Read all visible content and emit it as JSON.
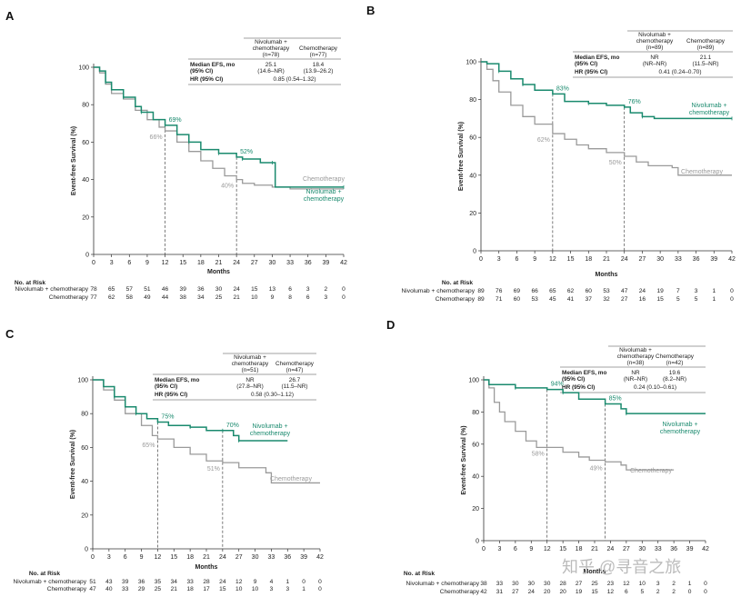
{
  "colors": {
    "nivo": "#1a8a6e",
    "chemo": "#9a9a9a"
  },
  "common": {
    "ylabel": "Event-free Survival (%)",
    "xlabel": "Months",
    "risk_title": "No. at Risk",
    "nivo_label": "Nivolumab + chemotherapy",
    "chemo_label": "Chemotherapy",
    "nivo_curve_label": [
      "Nivolumab +",
      "chemotherapy"
    ],
    "chemo_curve_label": "Chemotherapy",
    "row_median": [
      "Median EFS, mo",
      "(95% CI)"
    ],
    "row_hr": "HR (95% CI)",
    "col_nivo_head": [
      "Nivolumab +",
      "chemotherapy"
    ],
    "col_chemo_head": "Chemotherapy"
  },
  "watermark": "知乎 @寻音之旅",
  "chart_data": [
    {
      "panel": "A",
      "type": "line",
      "xlim": [
        0,
        42
      ],
      "ylim": [
        0,
        100
      ],
      "xticks": [
        0,
        3,
        6,
        9,
        12,
        15,
        18,
        21,
        24,
        27,
        30,
        33,
        36,
        39,
        42
      ],
      "yticks": [
        0,
        20,
        40,
        60,
        80,
        100
      ],
      "n_nivo": "(n=78)",
      "n_chemo": "(n=77)",
      "median_nivo": [
        "25.1",
        "(14.6–NR)"
      ],
      "median_chemo": [
        "18.4",
        "(13.9–26.2)"
      ],
      "hr": "0.85 (0.54–1.32)",
      "nivo": [
        [
          0,
          100
        ],
        [
          1,
          98
        ],
        [
          2,
          92
        ],
        [
          3,
          88
        ],
        [
          5,
          84
        ],
        [
          7,
          79
        ],
        [
          8,
          76
        ],
        [
          10,
          72
        ],
        [
          12,
          69
        ],
        [
          14,
          64
        ],
        [
          16,
          60
        ],
        [
          18,
          56
        ],
        [
          21,
          54
        ],
        [
          24,
          52
        ],
        [
          25,
          51
        ],
        [
          28,
          49
        ],
        [
          30,
          49
        ],
        [
          30.5,
          36
        ],
        [
          42,
          36
        ]
      ],
      "chemo": [
        [
          0,
          100
        ],
        [
          1,
          97
        ],
        [
          2,
          91
        ],
        [
          3,
          86
        ],
        [
          5,
          83
        ],
        [
          7,
          77
        ],
        [
          9,
          72
        ],
        [
          11,
          68
        ],
        [
          12,
          66
        ],
        [
          14,
          60
        ],
        [
          16,
          55
        ],
        [
          18,
          50
        ],
        [
          20,
          46
        ],
        [
          22,
          42
        ],
        [
          24,
          40
        ],
        [
          25,
          38
        ],
        [
          27,
          37
        ],
        [
          30,
          36
        ],
        [
          33,
          35
        ],
        [
          42,
          35
        ]
      ],
      "ann_nivo": [
        {
          "x": 12,
          "y": 69,
          "t": "69%"
        },
        {
          "x": 24,
          "y": 52,
          "t": "52%"
        }
      ],
      "ann_chemo": [
        {
          "x": 12,
          "y": 66,
          "t": "66%"
        },
        {
          "x": 24,
          "y": 40,
          "t": "40%"
        }
      ],
      "risk_x": [
        0,
        3,
        6,
        9,
        12,
        15,
        18,
        21,
        24,
        27,
        30,
        33,
        36,
        39,
        42
      ],
      "risk_nivo": [
        "78",
        "65",
        "57",
        "51",
        "46",
        "39",
        "36",
        "30",
        "24",
        "15",
        "13",
        "6",
        "3",
        "2",
        "0"
      ],
      "risk_chemo": [
        "77",
        "62",
        "58",
        "49",
        "44",
        "38",
        "34",
        "25",
        "21",
        "10",
        "9",
        "8",
        "6",
        "3",
        "0"
      ]
    },
    {
      "panel": "B",
      "type": "line",
      "xlim": [
        0,
        42
      ],
      "ylim": [
        0,
        100
      ],
      "xticks": [
        0,
        3,
        6,
        9,
        12,
        15,
        18,
        21,
        24,
        27,
        30,
        33,
        36,
        39,
        42
      ],
      "yticks": [
        0,
        20,
        40,
        60,
        80,
        100
      ],
      "n_nivo": "(n=89)",
      "n_chemo": "(n=89)",
      "median_nivo": [
        "NR",
        "(NR–NR)"
      ],
      "median_chemo": [
        "21.1",
        "(11.5–NR)"
      ],
      "hr": "0.41 (0.24–0.70)",
      "nivo": [
        [
          0,
          100
        ],
        [
          1,
          99
        ],
        [
          3,
          95
        ],
        [
          5,
          91
        ],
        [
          7,
          88
        ],
        [
          9,
          85
        ],
        [
          12,
          83
        ],
        [
          14,
          79
        ],
        [
          18,
          78
        ],
        [
          21,
          77
        ],
        [
          24,
          76
        ],
        [
          25,
          73
        ],
        [
          27,
          71
        ],
        [
          29,
          70
        ],
        [
          42,
          70
        ]
      ],
      "chemo": [
        [
          0,
          100
        ],
        [
          1,
          96
        ],
        [
          2,
          90
        ],
        [
          3,
          84
        ],
        [
          5,
          77
        ],
        [
          7,
          71
        ],
        [
          9,
          67
        ],
        [
          12,
          62
        ],
        [
          14,
          59
        ],
        [
          16,
          56
        ],
        [
          18,
          54
        ],
        [
          21,
          52
        ],
        [
          24,
          50
        ],
        [
          26,
          47
        ],
        [
          28,
          45
        ],
        [
          32,
          44
        ],
        [
          33,
          40
        ],
        [
          42,
          40
        ]
      ],
      "ann_nivo": [
        {
          "x": 12,
          "y": 83,
          "t": "83%"
        },
        {
          "x": 24,
          "y": 76,
          "t": "76%"
        }
      ],
      "ann_chemo": [
        {
          "x": 12,
          "y": 62,
          "t": "62%"
        },
        {
          "x": 24,
          "y": 50,
          "t": "50%"
        }
      ],
      "risk_x": [
        0,
        3,
        6,
        9,
        12,
        15,
        18,
        21,
        24,
        27,
        30,
        33,
        36,
        39,
        42
      ],
      "risk_nivo": [
        "89",
        "76",
        "69",
        "66",
        "65",
        "62",
        "60",
        "53",
        "47",
        "24",
        "19",
        "7",
        "3",
        "1",
        "0"
      ],
      "risk_chemo": [
        "89",
        "71",
        "60",
        "53",
        "45",
        "41",
        "37",
        "32",
        "27",
        "16",
        "15",
        "5",
        "5",
        "1",
        "0"
      ]
    },
    {
      "panel": "C",
      "type": "line",
      "xlim": [
        0,
        42
      ],
      "ylim": [
        0,
        100
      ],
      "xticks": [
        0,
        3,
        6,
        9,
        12,
        15,
        18,
        21,
        24,
        27,
        30,
        33,
        36,
        39,
        42
      ],
      "yticks": [
        0,
        20,
        40,
        60,
        80,
        100
      ],
      "n_nivo": "(n=51)",
      "n_chemo": "(n=47)",
      "median_nivo": [
        "NR",
        "(27.8–NR)"
      ],
      "median_chemo": [
        "26.7",
        "(11.5–NR)"
      ],
      "hr": "0.58 (0.30–1.12)",
      "nivo": [
        [
          0,
          100
        ],
        [
          2,
          96
        ],
        [
          4,
          90
        ],
        [
          6,
          84
        ],
        [
          8,
          80
        ],
        [
          10,
          77
        ],
        [
          12,
          75
        ],
        [
          14,
          73
        ],
        [
          18,
          72
        ],
        [
          21,
          70
        ],
        [
          24,
          70
        ],
        [
          26,
          67
        ],
        [
          27,
          64
        ],
        [
          36,
          64
        ]
      ],
      "chemo": [
        [
          0,
          100
        ],
        [
          2,
          94
        ],
        [
          4,
          88
        ],
        [
          6,
          80
        ],
        [
          9,
          73
        ],
        [
          11,
          67
        ],
        [
          12,
          65
        ],
        [
          15,
          60
        ],
        [
          18,
          56
        ],
        [
          21,
          52
        ],
        [
          24,
          51
        ],
        [
          27,
          48
        ],
        [
          32,
          45
        ],
        [
          33,
          39
        ],
        [
          42,
          39
        ]
      ],
      "ann_nivo": [
        {
          "x": 12,
          "y": 75,
          "t": "75%"
        },
        {
          "x": 24,
          "y": 70,
          "t": "70%"
        }
      ],
      "ann_chemo": [
        {
          "x": 12,
          "y": 65,
          "t": "65%"
        },
        {
          "x": 24,
          "y": 51,
          "t": "51%"
        }
      ],
      "risk_x": [
        0,
        3,
        6,
        9,
        12,
        15,
        18,
        21,
        24,
        27,
        30,
        33,
        36,
        39,
        42
      ],
      "risk_nivo": [
        "51",
        "43",
        "39",
        "36",
        "35",
        "34",
        "33",
        "28",
        "24",
        "12",
        "9",
        "4",
        "1",
        "0",
        "0"
      ],
      "risk_chemo": [
        "47",
        "40",
        "33",
        "29",
        "25",
        "21",
        "18",
        "17",
        "15",
        "10",
        "10",
        "3",
        "3",
        "1",
        "0"
      ]
    },
    {
      "panel": "D",
      "type": "line",
      "xlim": [
        0,
        42
      ],
      "ylim": [
        0,
        100
      ],
      "xticks": [
        0,
        3,
        6,
        9,
        12,
        15,
        18,
        21,
        24,
        27,
        30,
        33,
        36,
        39,
        42
      ],
      "yticks": [
        0,
        20,
        40,
        60,
        80,
        100
      ],
      "n_nivo": "(n=38)",
      "n_chemo": "(n=42)",
      "median_nivo": [
        "NR",
        "(NR–NR)"
      ],
      "median_chemo": [
        "19.6",
        "(8.2–NR)"
      ],
      "hr": "0.24 (0.10–0.61)",
      "nivo": [
        [
          0,
          100
        ],
        [
          1,
          97
        ],
        [
          6,
          95
        ],
        [
          12,
          94
        ],
        [
          15,
          92
        ],
        [
          18,
          88
        ],
        [
          23,
          85
        ],
        [
          26,
          82
        ],
        [
          27,
          79
        ],
        [
          42,
          79
        ]
      ],
      "chemo": [
        [
          0,
          100
        ],
        [
          1,
          95
        ],
        [
          2,
          86
        ],
        [
          3,
          80
        ],
        [
          4,
          74
        ],
        [
          6,
          68
        ],
        [
          8,
          62
        ],
        [
          10,
          58
        ],
        [
          12,
          58
        ],
        [
          15,
          55
        ],
        [
          18,
          52
        ],
        [
          20,
          50
        ],
        [
          23,
          49
        ],
        [
          26,
          47
        ],
        [
          27,
          44
        ],
        [
          36,
          44
        ]
      ],
      "ann_nivo": [
        {
          "x": 12,
          "y": 94,
          "t": "94%"
        },
        {
          "x": 23,
          "y": 85,
          "t": "85%"
        }
      ],
      "ann_chemo": [
        {
          "x": 12,
          "y": 58,
          "t": "58%"
        },
        {
          "x": 23,
          "y": 49,
          "t": "49%"
        }
      ],
      "risk_x": [
        0,
        3,
        6,
        9,
        12,
        15,
        18,
        21,
        24,
        27,
        30,
        33,
        36,
        39,
        42
      ],
      "risk_nivo": [
        "38",
        "33",
        "30",
        "30",
        "30",
        "28",
        "27",
        "25",
        "23",
        "12",
        "10",
        "3",
        "2",
        "1",
        "0"
      ],
      "risk_chemo": [
        "42",
        "31",
        "27",
        "24",
        "20",
        "20",
        "19",
        "15",
        "12",
        "6",
        "5",
        "2",
        "2",
        "0",
        "0"
      ]
    }
  ]
}
